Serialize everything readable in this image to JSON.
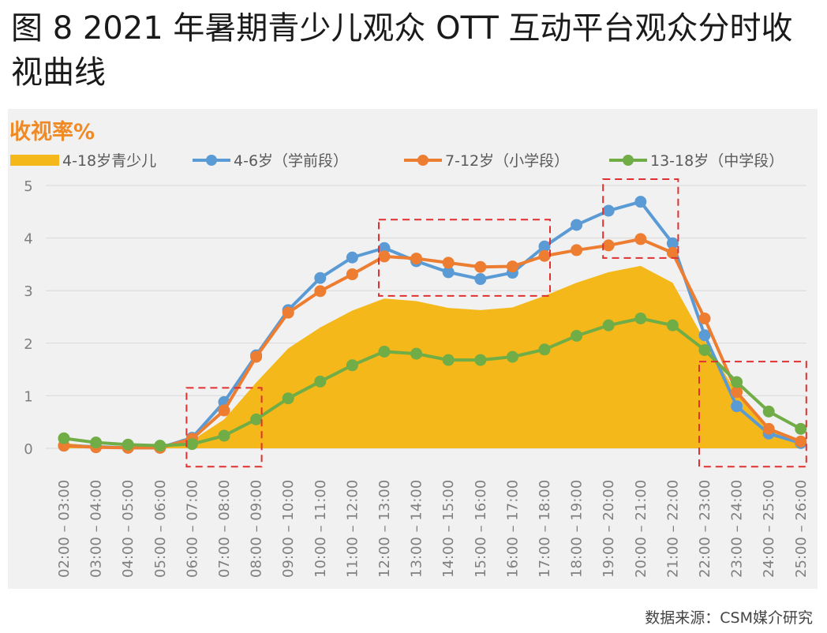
{
  "title": "图 8 2021 年暑期青少儿观众 OTT 互动平台观众分时收视曲线",
  "source": "数据来源：CSM媒介研究",
  "chart_data": {
    "type": "line",
    "ylabel": "收视率%",
    "ylim": [
      0,
      5
    ],
    "yticks": [
      0,
      1,
      2,
      3,
      4,
      5
    ],
    "categories": [
      "02:00 – 03:00",
      "03:00 – 04:00",
      "04:00 – 05:00",
      "05:00 – 06:00",
      "06:00 – 07:00",
      "07:00 – 08:00",
      "08:00 – 09:00",
      "09:00 – 10:00",
      "10:00 – 11:00",
      "11:00 – 12:00",
      "12:00 – 13:00",
      "13:00 – 14:00",
      "14:00 – 15:00",
      "15:00 – 16:00",
      "16:00 – 17:00",
      "17:00 – 18:00",
      "18:00 – 19:00",
      "19:00 – 20:00",
      "20:00 – 21:00",
      "21:00 – 22:00",
      "22:00 – 23:00",
      "23:00 – 24:00",
      "24:00 – 25:00",
      "25:00 – 26:00"
    ],
    "series": [
      {
        "name": "4-18岁青少儿",
        "kind": "area",
        "color": "#f5b81a",
        "values": [
          0.1,
          0.05,
          0.03,
          0.02,
          0.15,
          0.55,
          1.25,
          1.9,
          2.3,
          2.62,
          2.85,
          2.8,
          2.67,
          2.63,
          2.68,
          2.9,
          3.15,
          3.35,
          3.47,
          3.15,
          2.05,
          1.05,
          0.38,
          0.12
        ]
      },
      {
        "name": "4-6岁（学前段）",
        "kind": "line",
        "color": "#5b9bd5",
        "values": [
          0.05,
          0.03,
          0.01,
          0.01,
          0.2,
          0.88,
          1.77,
          2.63,
          3.24,
          3.63,
          3.81,
          3.56,
          3.35,
          3.22,
          3.34,
          3.84,
          4.25,
          4.52,
          4.69,
          3.9,
          2.15,
          0.8,
          0.28,
          0.1
        ]
      },
      {
        "name": "7-12岁（小学段）",
        "kind": "line",
        "color": "#ed7d31",
        "values": [
          0.05,
          0.02,
          0.01,
          0.01,
          0.18,
          0.72,
          1.74,
          2.58,
          2.99,
          3.31,
          3.65,
          3.61,
          3.53,
          3.45,
          3.46,
          3.66,
          3.77,
          3.86,
          3.98,
          3.72,
          2.47,
          1.07,
          0.37,
          0.13
        ]
      },
      {
        "name": "13-18岁（中学段）",
        "kind": "line",
        "color": "#70ad47",
        "values": [
          0.19,
          0.11,
          0.07,
          0.05,
          0.08,
          0.24,
          0.55,
          0.95,
          1.27,
          1.58,
          1.84,
          1.8,
          1.68,
          1.68,
          1.74,
          1.88,
          2.14,
          2.34,
          2.47,
          2.34,
          1.87,
          1.26,
          0.7,
          0.37
        ]
      }
    ],
    "annotations": [
      {
        "type": "dashed-box",
        "color": "#e03030",
        "from": "06:00 – 07:00",
        "to": "08:00 – 09:00",
        "y_range": [
          -0.35,
          1.15
        ]
      },
      {
        "type": "dashed-box",
        "color": "#e03030",
        "from": "12:00 – 13:00",
        "to": "17:00 – 18:00",
        "y_range": [
          2.9,
          4.35
        ]
      },
      {
        "type": "dashed-box",
        "color": "#e03030",
        "from": "19:00 – 20:00",
        "to": "21:00 – 22:00",
        "y_range": [
          3.62,
          5.12
        ]
      },
      {
        "type": "dashed-box",
        "color": "#e03030",
        "from": "22:00 – 23:00",
        "to": "25:00 – 26:00",
        "y_range": [
          -0.35,
          1.65
        ]
      }
    ]
  }
}
